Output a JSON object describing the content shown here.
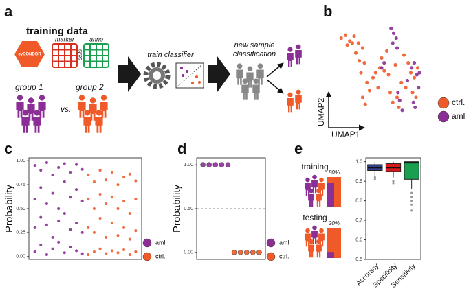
{
  "panel_labels": [
    "a",
    "b",
    "c",
    "d",
    "e"
  ],
  "diagram": {
    "title": "training data",
    "logo": "cyCONDOR",
    "marker": "marker",
    "cells": "cells",
    "anno": "anno",
    "group1": "group 1",
    "vs": "vs.",
    "group2": "group 2",
    "train": "train classifier",
    "new_sample": [
      "new sample",
      "classification"
    ]
  },
  "chart_data": [
    {
      "type": "scatter",
      "xlabel": "UMAP1",
      "ylabel": "UMAP2",
      "xlim": [
        0,
        10
      ],
      "ylim": [
        0,
        10
      ],
      "series": [
        {
          "name": "ctrl.",
          "color": "#f05a28",
          "x": [
            0.5,
            1,
            1.5,
            2,
            2.5,
            3,
            1.2,
            2.2,
            3.2,
            2.8,
            3.5,
            3.8,
            4.2,
            4.5,
            5,
            5.5,
            6,
            6.2,
            6.5,
            7,
            7.2,
            7.5,
            8,
            8.3,
            8.6,
            9,
            9.2,
            3,
            3.3,
            5.2,
            5.8,
            6.8,
            7.8,
            8.8,
            9.4,
            4.8,
            2.6,
            1.8
          ],
          "values": [
            8.5,
            8.8,
            8.2,
            8.7,
            8,
            7.5,
            7.8,
            7,
            6,
            5,
            4,
            3.2,
            4.5,
            5,
            5.5,
            5.2,
            4.8,
            3,
            2,
            2.5,
            1.5,
            4,
            3.5,
            6,
            5,
            4.5,
            2.5,
            2.5,
            1.8,
            6.5,
            7.2,
            5.8,
            6.8,
            3,
            5.5,
            3.5,
            6.2,
            8
          ]
        },
        {
          "name": "aml",
          "color": "#8b2f97",
          "x": [
            6.3,
            6.6,
            6.9,
            6.5,
            7,
            8.7,
            9,
            9.3,
            9.5,
            8.9,
            7.3,
            7.6,
            7.1,
            5.5,
            5.2,
            9.6,
            9.1,
            8.2
          ],
          "values": [
            9.5,
            9,
            8.5,
            8,
            7.5,
            5.5,
            6,
            4.8,
            3.5,
            2,
            2.2,
            1.2,
            3,
            6,
            5.5,
            5,
            1.5,
            4.2
          ]
        }
      ]
    },
    {
      "type": "strip",
      "ylabel": "Probability",
      "xlim": [
        0,
        19
      ],
      "ylim": [
        -0.03,
        1.03
      ],
      "yticks": [
        {
          "value": 0,
          "label": "0.00"
        },
        0.25,
        {
          "value": 0.5,
          "label": "0.50"
        },
        0.75,
        {
          "value": 1,
          "label": "1.00"
        }
      ],
      "series": [
        {
          "name": "aml",
          "color": "#8b2f97",
          "x": [
            1,
            1,
            1,
            1,
            2,
            2,
            2,
            2,
            3,
            3,
            3,
            3,
            4,
            4,
            4,
            4,
            5,
            5,
            5,
            5,
            6,
            6,
            6,
            6,
            7,
            7,
            7,
            7,
            8,
            8,
            8,
            8,
            9,
            9,
            9,
            9
          ],
          "values": [
            0.95,
            0.6,
            0.3,
            0.05,
            0.9,
            0.72,
            0.41,
            0.12,
            0.98,
            0.55,
            0.33,
            0.02,
            0.85,
            0.66,
            0.2,
            0.08,
            0.93,
            0.5,
            0.37,
            0.15,
            0.97,
            0.78,
            0.45,
            0.04,
            0.88,
            0.62,
            0.28,
            0.1,
            0.96,
            0.7,
            0.35,
            0.06,
            0.91,
            0.58,
            0.25,
            0.03
          ]
        },
        {
          "name": "ctrl.",
          "color": "#f05a28",
          "x": [
            10,
            10,
            10,
            10,
            11,
            11,
            11,
            11,
            12,
            12,
            12,
            12,
            13,
            13,
            13,
            13,
            14,
            14,
            14,
            14,
            15,
            15,
            15,
            15,
            16,
            16,
            16,
            16,
            17,
            17,
            17,
            17,
            18,
            18,
            18,
            18
          ],
          "values": [
            0.85,
            0.6,
            0.3,
            0.02,
            0.78,
            0.5,
            0.25,
            0.05,
            0.9,
            0.65,
            0.4,
            0.08,
            0.8,
            0.55,
            0.2,
            0.03,
            0.88,
            0.62,
            0.35,
            0.06,
            0.75,
            0.5,
            0.22,
            0.04,
            0.83,
            0.58,
            0.3,
            0.07,
            0.86,
            0.45,
            0.18,
            0.02,
            0.79,
            0.6,
            0.27,
            0.05
          ]
        }
      ]
    },
    {
      "type": "scatter",
      "ylabel": "Probability",
      "xlim": [
        0,
        11
      ],
      "ylim": [
        -0.08,
        1.08
      ],
      "yticks": [
        {
          "value": 0,
          "label": "0.00"
        },
        {
          "value": 0.5,
          "label": "0.50"
        },
        {
          "value": 1,
          "label": "1.00"
        }
      ],
      "hline": 0.5,
      "series": [
        {
          "name": "aml",
          "color": "#8b2f97",
          "x": [
            1,
            2,
            3,
            4,
            5
          ],
          "values": [
            1,
            1,
            1,
            1,
            1
          ]
        },
        {
          "name": "ctrl.",
          "color": "#f05a28",
          "x": [
            6,
            7,
            8,
            9,
            10
          ],
          "values": [
            0,
            0,
            0,
            0,
            0
          ]
        }
      ]
    },
    {
      "type": "bar",
      "categories": [
        "training",
        "testing"
      ],
      "values": [
        80,
        20
      ],
      "value_labels": [
        "80%",
        "20%"
      ],
      "ylim": [
        0,
        100
      ],
      "color": "#8b2f97",
      "frame_color": "#f05a28"
    },
    {
      "type": "box",
      "categories": [
        "Accuracy",
        "Specificity",
        "Sensitivity"
      ],
      "ylim": [
        0.5,
        1.02
      ],
      "yticks": [
        0.5,
        0.6,
        0.7,
        0.8,
        0.9,
        {
          "value": 1,
          "label": "1.0"
        }
      ],
      "boxes": [
        {
          "color": "#2f3f8f",
          "low": 0.93,
          "q1": 0.955,
          "median": 0.97,
          "q3": 0.985,
          "high": 1.0
        },
        {
          "color": "#d7191c",
          "low": 0.92,
          "q1": 0.95,
          "median": 0.97,
          "q3": 0.99,
          "high": 1.0
        },
        {
          "color": "#1a9e4f",
          "low": 0.86,
          "q1": 0.91,
          "median": 0.995,
          "q3": 1.0,
          "high": 1.0
        }
      ],
      "outliers": [
        [
          0.91,
          0.92
        ],
        [
          0.89,
          0.9
        ],
        [
          0.84,
          0.82,
          0.8,
          0.78,
          0.75
        ]
      ]
    }
  ]
}
